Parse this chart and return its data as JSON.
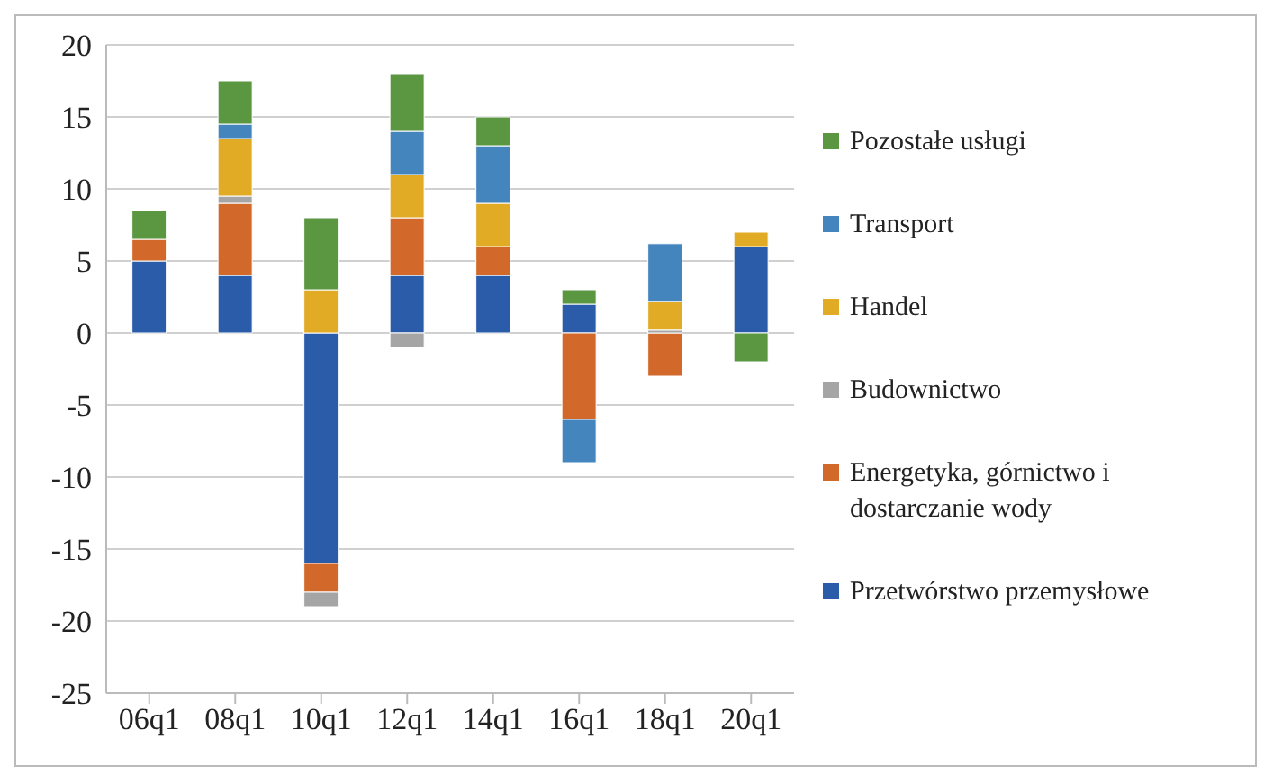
{
  "chart_data": {
    "type": "bar",
    "stacked": true,
    "categories": [
      "06q1",
      "08q1",
      "10q1",
      "12q1",
      "14q1",
      "16q1",
      "18q1",
      "20q1"
    ],
    "series": [
      {
        "name": "Przetwórstwo przemysłowe",
        "color": "#2a5caa",
        "values": [
          5,
          4,
          -16,
          4,
          4,
          2,
          0,
          6
        ]
      },
      {
        "name": "Energetyka, górnictwo i dostarczanie wody",
        "color": "#d2692a",
        "values": [
          1.5,
          5,
          -2,
          4,
          2,
          -6,
          -3,
          0
        ]
      },
      {
        "name": "Budownictwo",
        "color": "#a5a5a5",
        "values": [
          0,
          0.5,
          -1,
          -1,
          0,
          0,
          0.2,
          0
        ]
      },
      {
        "name": "Handel",
        "color": "#e2ab26",
        "values": [
          0,
          4,
          3,
          3,
          3,
          0,
          2,
          1
        ]
      },
      {
        "name": "Transport",
        "color": "#4585be",
        "values": [
          0,
          1,
          0,
          3,
          4,
          -3,
          4,
          0
        ]
      },
      {
        "name": "Pozostałe usługi",
        "color": "#5b9641",
        "values": [
          2,
          3,
          5,
          4,
          2,
          1,
          0,
          -2
        ]
      }
    ],
    "ylim": [
      -25,
      20
    ],
    "yticks": [
      -25,
      -20,
      -15,
      -10,
      -5,
      0,
      5,
      10,
      15,
      20
    ],
    "grid": "y",
    "legend": "right"
  }
}
